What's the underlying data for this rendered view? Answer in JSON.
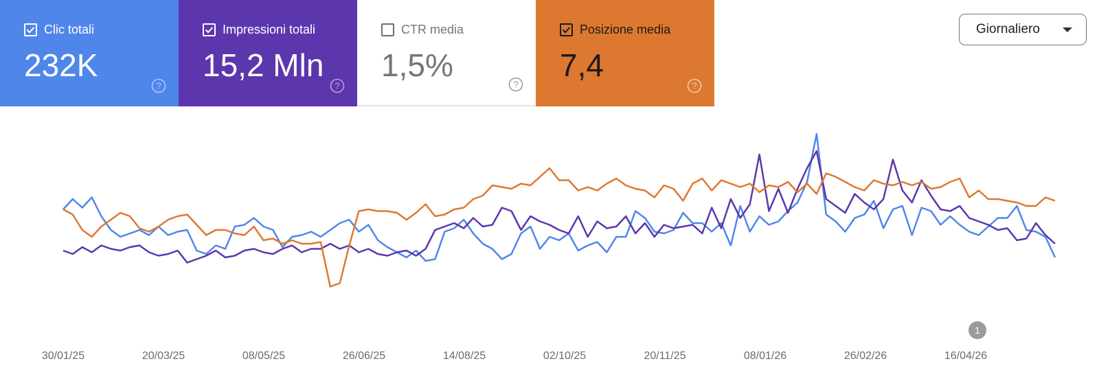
{
  "metrics": [
    {
      "label": "Clic totali",
      "value": "232K",
      "checked": true,
      "color": "#4f86ea"
    },
    {
      "label": "Impressioni totali",
      "value": "15,2 Mln",
      "checked": true,
      "color": "#5b36ad"
    },
    {
      "label": "CTR media",
      "value": "1,5%",
      "checked": false,
      "color": "#ffffff"
    },
    {
      "label": "Posizione media",
      "value": "7,4",
      "checked": true,
      "color": "#dd7830"
    }
  ],
  "granularity": {
    "label": "Giornaliero"
  },
  "chart_data": {
    "type": "line",
    "x_tick_labels": [
      "30/01/25",
      "20/03/25",
      "08/05/25",
      "26/06/25",
      "14/08/25",
      "02/10/25",
      "20/11/25",
      "08/01/26",
      "26/02/26",
      "16/04/26"
    ],
    "annotation_marker": {
      "label": "1",
      "date": "2026-04-16"
    },
    "grid": false,
    "series": [
      {
        "name": "Clic totali",
        "color": "#4f86ea",
        "values": [
          56,
          62,
          57,
          63,
          52,
          44,
          40,
          42,
          44,
          41,
          46,
          41,
          43,
          44,
          32,
          30,
          35,
          33,
          46,
          47,
          51,
          46,
          44,
          34,
          40,
          41,
          43,
          40,
          44,
          48,
          50,
          43,
          47,
          38,
          34,
          31,
          28,
          32,
          26,
          27,
          43,
          45,
          50,
          42,
          36,
          33,
          27,
          30,
          42,
          46,
          33,
          40,
          38,
          42,
          32,
          35,
          37,
          31,
          40,
          40,
          55,
          51,
          43,
          42,
          44,
          54,
          48,
          48,
          43,
          48,
          35,
          58,
          43,
          52,
          47,
          49,
          55,
          60,
          72,
          100,
          53,
          49,
          43,
          51,
          53,
          61,
          45,
          56,
          58,
          41,
          57,
          55,
          47,
          52,
          47,
          43,
          41,
          46,
          51,
          51,
          58,
          44,
          43,
          40,
          28
        ]
      },
      {
        "name": "Impressioni totali",
        "color": "#5b36ad",
        "values": [
          32,
          30,
          34,
          31,
          35,
          33,
          32,
          34,
          35,
          31,
          29,
          30,
          32,
          25,
          27,
          29,
          32,
          28,
          29,
          32,
          33,
          31,
          30,
          33,
          35,
          31,
          33,
          33,
          36,
          33,
          35,
          31,
          33,
          30,
          29,
          31,
          32,
          29,
          33,
          44,
          46,
          48,
          45,
          51,
          46,
          47,
          57,
          55,
          44,
          52,
          49,
          47,
          44,
          42,
          52,
          40,
          49,
          45,
          46,
          52,
          42,
          48,
          40,
          47,
          45,
          46,
          47,
          42,
          57,
          45,
          62,
          51,
          59,
          88,
          55,
          68,
          54,
          68,
          80,
          90,
          62,
          58,
          54,
          65,
          60,
          56,
          62,
          85,
          67,
          60,
          73,
          64,
          56,
          55,
          58,
          51,
          49,
          47,
          44,
          45,
          38,
          39,
          48,
          41,
          36
        ]
      },
      {
        "name": "Posizione media",
        "color": "#dd7830",
        "values": [
          56,
          53,
          44,
          40,
          46,
          50,
          54,
          52,
          45,
          43,
          46,
          50,
          52,
          53,
          47,
          41,
          44,
          44,
          42,
          41,
          46,
          38,
          39,
          36,
          38,
          36,
          36,
          37,
          11,
          13,
          35,
          55,
          56,
          55,
          55,
          54,
          50,
          54,
          59,
          52,
          53,
          56,
          57,
          62,
          64,
          70,
          69,
          68,
          71,
          70,
          75,
          80,
          73,
          73,
          67,
          69,
          67,
          71,
          74,
          70,
          68,
          67,
          63,
          70,
          68,
          61,
          71,
          74,
          67,
          73,
          71,
          69,
          71,
          66,
          70,
          69,
          72,
          66,
          71,
          65,
          77,
          75,
          72,
          69,
          67,
          73,
          71,
          70,
          72,
          70,
          72,
          68,
          69,
          72,
          74,
          63,
          67,
          62,
          62,
          61,
          60,
          58,
          58,
          63,
          61
        ]
      }
    ],
    "x_range": [
      "2025-01-30",
      "2026-05-16"
    ]
  }
}
